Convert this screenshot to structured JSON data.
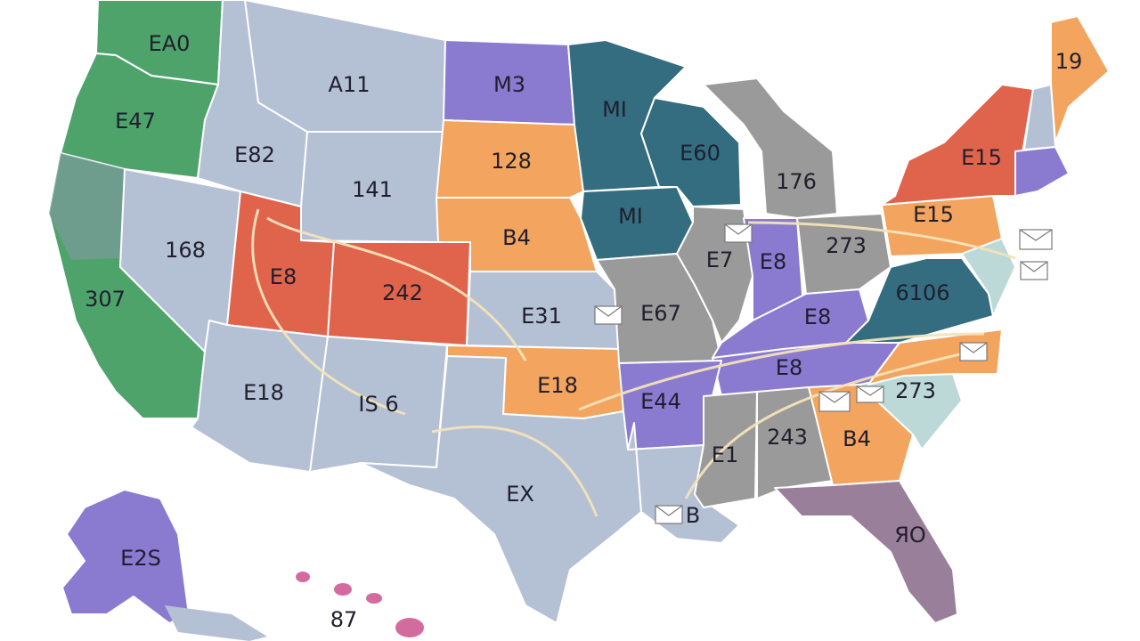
{
  "colors": {
    "green": "#4ea36b",
    "slate": "#b4c0d4",
    "purple": "#8a7bd0",
    "teal": "#336d7f",
    "orange": "#f3a45e",
    "red": "#e0634c",
    "gray": "#9a9a9a",
    "light_teal": "#bcd9d8",
    "mauve": "#9a7f9a",
    "pink": "#d36b9e",
    "route": "#f3e3b8"
  },
  "labels": {
    "wa": "EA0",
    "or": "E47",
    "ca": "307",
    "nv": "168",
    "id": "E82",
    "mt": "A11",
    "wy": "141",
    "ut": "E8",
    "co": "242",
    "az": "E18",
    "nm": "IS 6",
    "tx": "EX",
    "nd": "M3",
    "sd": "128",
    "ne": "B4",
    "ks": "E31",
    "ok": "E18",
    "mn": "MI",
    "ia": "MI",
    "wi": "E60",
    "mi": "176",
    "il": "E7",
    "in": "E8",
    "oh": "273",
    "mo": "E67",
    "ar": "E44",
    "la": "B",
    "ms": "E1",
    "al": "243",
    "ga": "B4",
    "fl": "ЯO",
    "tn": "E8",
    "ky": "E8",
    "wv_va": "6106",
    "nc_sc": "273",
    "pa": "E15",
    "ny": "E15",
    "me": "19",
    "ak": "E2S",
    "hi": "87"
  },
  "icons": {
    "envelope": "envelope-icon"
  }
}
